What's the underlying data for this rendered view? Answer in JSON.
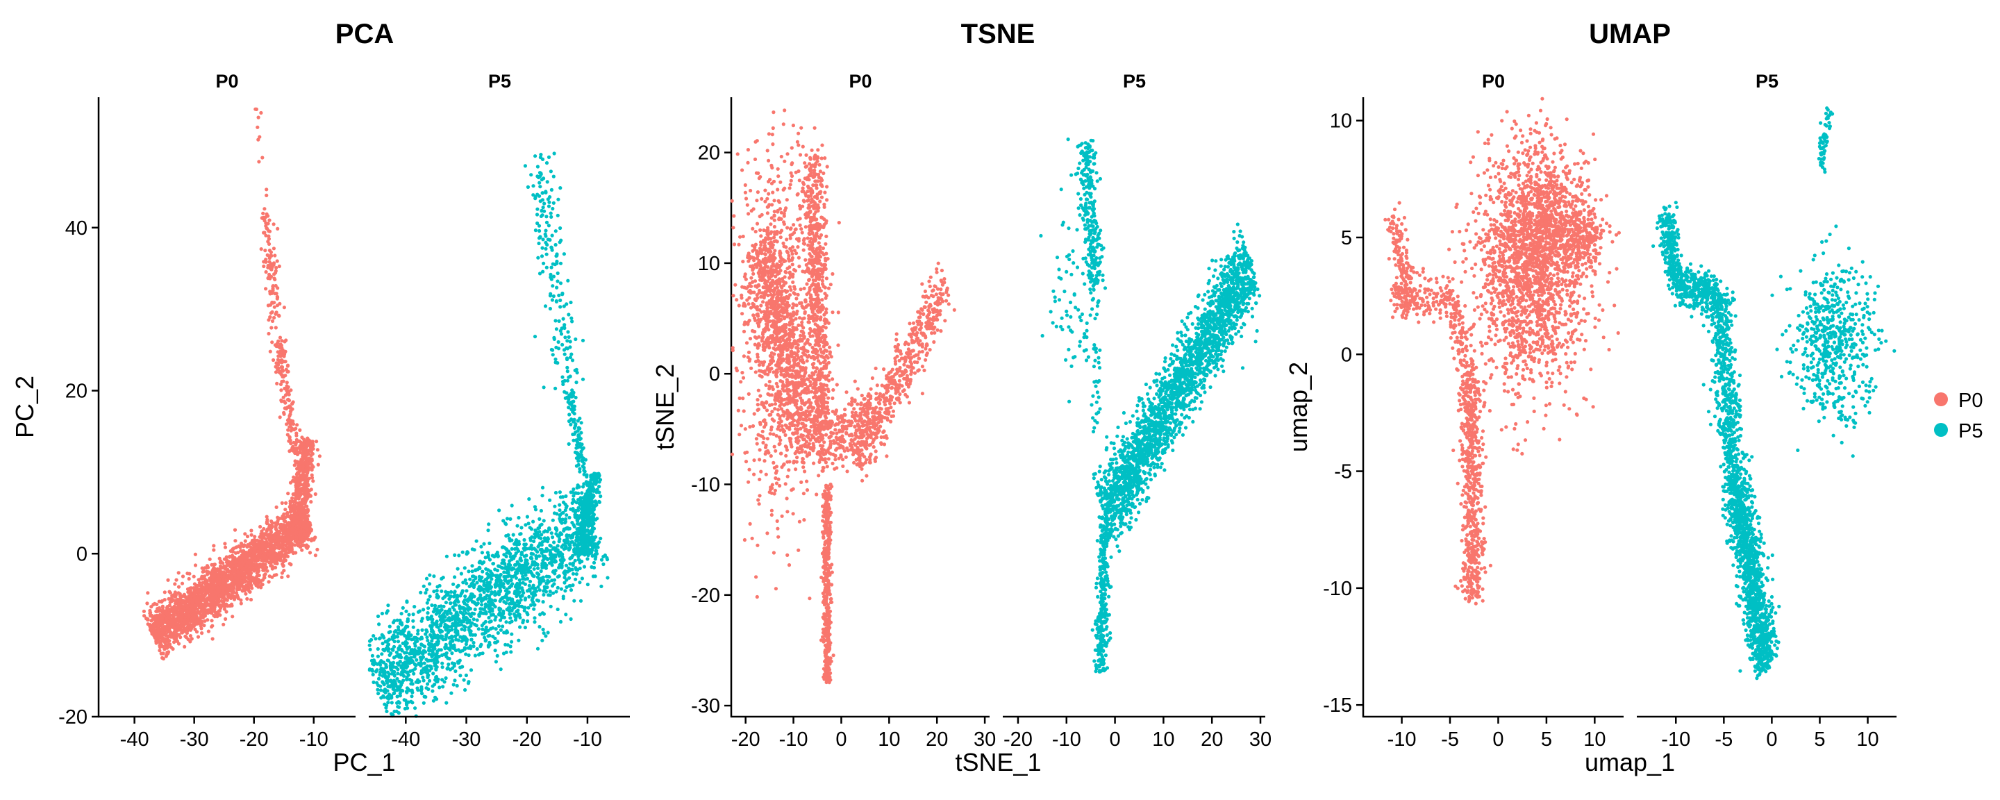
{
  "colors": {
    "P0": "#F8766D",
    "P5": "#00BFC4"
  },
  "legend": {
    "entries": [
      "P0",
      "P5"
    ]
  },
  "chart_data": [
    {
      "type": "scatter",
      "title": "PCA",
      "xlabel": "PC_1",
      "ylabel": "PC_2",
      "xlim": [
        -46,
        -3
      ],
      "ylim": [
        -20,
        56
      ],
      "xticks": [
        -40,
        -30,
        -20,
        -10
      ],
      "xtick_labels": [
        "-40",
        "-30",
        "-20",
        "-10"
      ],
      "yticks": [
        -20,
        0,
        20,
        40
      ],
      "ytick_labels": [
        "-20",
        "0",
        "20",
        "40"
      ],
      "facets": [
        {
          "name": "P0",
          "color": "#F8766D",
          "clusters": [
            {
              "kind": "line",
              "from": [
                -37,
                -10
              ],
              "to": [
                -11,
                4
              ],
              "width": 3.0,
              "n": 2400
            },
            {
              "kind": "line",
              "from": [
                -13,
                2
              ],
              "to": [
                -11,
                14
              ],
              "width": 1.5,
              "n": 500
            },
            {
              "kind": "line",
              "from": [
                -13,
                12
              ],
              "to": [
                -16,
                26
              ],
              "width": 1.2,
              "n": 150
            },
            {
              "kind": "line",
              "from": [
                -16,
                26
              ],
              "to": [
                -18,
                44
              ],
              "width": 1.2,
              "n": 110
            },
            {
              "kind": "line",
              "from": [
                -18,
                44
              ],
              "to": [
                -19.5,
                55
              ],
              "width": 0.8,
              "n": 10
            }
          ]
        },
        {
          "name": "P5",
          "color": "#00BFC4",
          "clusters": [
            {
              "kind": "line",
              "from": [
                -45,
                -16
              ],
              "to": [
                -9,
                4
              ],
              "width": 6.0,
              "n": 2000
            },
            {
              "kind": "line",
              "from": [
                -11,
                0
              ],
              "to": [
                -9,
                10
              ],
              "width": 1.5,
              "n": 350
            },
            {
              "kind": "line",
              "from": [
                -11,
                10
              ],
              "to": [
                -13,
                20
              ],
              "width": 1.0,
              "n": 100
            },
            {
              "kind": "line",
              "from": [
                -13,
                20
              ],
              "to": [
                -18,
                49
              ],
              "width": 2.5,
              "n": 190
            }
          ]
        }
      ]
    },
    {
      "type": "scatter",
      "title": "TSNE",
      "xlabel": "tSNE_1",
      "ylabel": "tSNE_2",
      "xlim": [
        -23,
        31
      ],
      "ylim": [
        -31,
        25
      ],
      "xticks": [
        -20,
        -10,
        0,
        10,
        20,
        30
      ],
      "xtick_labels": [
        "-20",
        "-10",
        "0",
        "10",
        "20",
        "30"
      ],
      "yticks": [
        -30,
        -20,
        -10,
        0,
        10,
        20
      ],
      "ytick_labels": [
        "-30",
        "-20",
        "-10",
        "0",
        "10",
        "20"
      ],
      "facets": [
        {
          "name": "P0",
          "color": "#F8766D",
          "clusters": [
            {
              "kind": "blob",
              "cx": -13,
              "cy": 4,
              "sx": 4.0,
              "sy": 8.0,
              "n": 1000
            },
            {
              "kind": "line",
              "from": [
                -18,
                12
              ],
              "to": [
                -6,
                -7
              ],
              "width": 4.0,
              "n": 700
            },
            {
              "kind": "line",
              "from": [
                -6,
                20
              ],
              "to": [
                -4,
                -5
              ],
              "width": 2.5,
              "n": 650
            },
            {
              "kind": "line",
              "from": [
                -5,
                -7
              ],
              "to": [
                7,
                -3
              ],
              "width": 3.0,
              "n": 300
            },
            {
              "kind": "line",
              "from": [
                3,
                -8
              ],
              "to": [
                22,
                8
              ],
              "width": 2.5,
              "n": 500
            },
            {
              "kind": "line",
              "from": [
                -3,
                -10
              ],
              "to": [
                -3,
                -28
              ],
              "width": 0.8,
              "n": 400
            }
          ]
        },
        {
          "name": "P5",
          "color": "#00BFC4",
          "clusters": [
            {
              "kind": "line",
              "from": [
                -6,
                21
              ],
              "to": [
                -4,
                8
              ],
              "width": 2.0,
              "n": 250
            },
            {
              "kind": "blob",
              "cx": -8,
              "cy": 7,
              "sx": 3.0,
              "sy": 5.0,
              "n": 80
            },
            {
              "kind": "line",
              "from": [
                -4,
                8
              ],
              "to": [
                -4,
                -5
              ],
              "width": 1.0,
              "n": 40
            },
            {
              "kind": "line",
              "from": [
                -2,
                -13
              ],
              "to": [
                28,
                10
              ],
              "width": 3.5,
              "n": 2200
            },
            {
              "kind": "line",
              "from": [
                -2,
                -13
              ],
              "to": [
                -3,
                -27
              ],
              "width": 1.2,
              "n": 300
            }
          ]
        }
      ]
    },
    {
      "type": "scatter",
      "title": "UMAP",
      "xlabel": "umap_1",
      "ylabel": "umap_2",
      "xlim": [
        -14,
        13
      ],
      "ylim": [
        -15.5,
        11
      ],
      "xticks": [
        -10,
        -5,
        0,
        5,
        10
      ],
      "xtick_labels": [
        "-10",
        "-5",
        "0",
        "5",
        "10"
      ],
      "yticks": [
        -15,
        -10,
        -5,
        0,
        5,
        10
      ],
      "ytick_labels": [
        "-15",
        "-10",
        "-5",
        "0",
        "5",
        "10"
      ],
      "facets": [
        {
          "name": "P0",
          "color": "#F8766D",
          "clusters": [
            {
              "kind": "line",
              "from": [
                -11,
                6
              ],
              "to": [
                -9,
                2
              ],
              "width": 0.8,
              "n": 150
            },
            {
              "kind": "line",
              "from": [
                -11,
                2.5
              ],
              "to": [
                -5,
                2.5
              ],
              "width": 0.8,
              "n": 150
            },
            {
              "kind": "line",
              "from": [
                -5,
                2.5
              ],
              "to": [
                -3,
                -1
              ],
              "width": 0.8,
              "n": 120
            },
            {
              "kind": "line",
              "from": [
                -3,
                -1
              ],
              "to": [
                -2.5,
                -10.5
              ],
              "width": 1.2,
              "n": 550
            },
            {
              "kind": "blob",
              "cx": 3.5,
              "cy": 3.5,
              "sx": 3.0,
              "sy": 2.5,
              "n": 1700
            },
            {
              "kind": "blob",
              "cx": 5,
              "cy": 6,
              "sx": 2.0,
              "sy": 1.5,
              "n": 500
            },
            {
              "kind": "blob",
              "cx": 9,
              "cy": 5,
              "sx": 1.0,
              "sy": 0.6,
              "n": 200
            }
          ]
        },
        {
          "name": "P5",
          "color": "#00BFC4",
          "clusters": [
            {
              "kind": "line",
              "from": [
                -11,
                6
              ],
              "to": [
                -10,
                3
              ],
              "width": 0.8,
              "n": 250
            },
            {
              "kind": "line",
              "from": [
                -10,
                3
              ],
              "to": [
                -5.5,
                2.5
              ],
              "width": 0.8,
              "n": 300
            },
            {
              "kind": "line",
              "from": [
                -5.5,
                2.5
              ],
              "to": [
                -4,
                -5
              ],
              "width": 1.2,
              "n": 500
            },
            {
              "kind": "line",
              "from": [
                -4,
                -5
              ],
              "to": [
                -0.5,
                -13.5
              ],
              "width": 1.3,
              "n": 1200
            },
            {
              "kind": "blob",
              "cx": 6.5,
              "cy": 0.5,
              "sx": 2.2,
              "sy": 1.7,
              "n": 550
            },
            {
              "kind": "line",
              "from": [
                5,
                8
              ],
              "to": [
                6,
                10.5
              ],
              "width": 0.4,
              "n": 60
            }
          ]
        }
      ]
    }
  ]
}
